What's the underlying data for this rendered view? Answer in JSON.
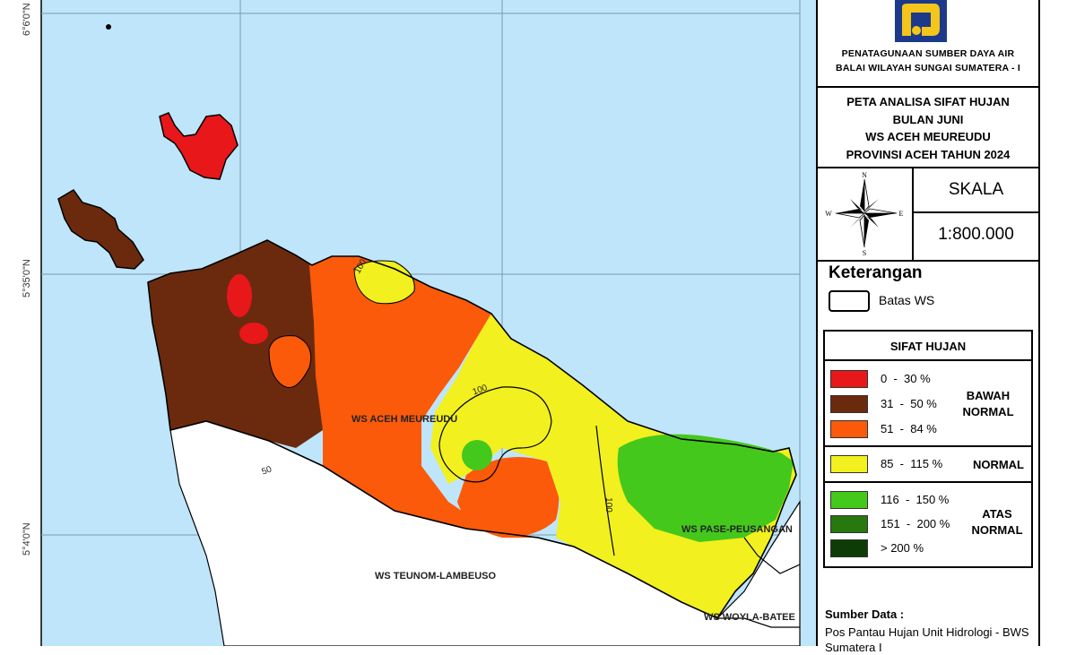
{
  "map": {
    "lat_labels": [
      "6°6'0\"N",
      "5°35'0\"N",
      "5°4'0\"N"
    ],
    "ws_labels": [
      "WS ACEH MEUREUDU",
      "WS PASE-PEUSANGAN",
      "WS TEUNOM-LAMBEUSO",
      "WS WOYLA-BATEE"
    ],
    "contour_labels": [
      "100",
      "100",
      "50",
      "100"
    ],
    "colors": {
      "sea": "#bfe5fb",
      "land_outside": "#ffffff",
      "grid": "#7a9aaa"
    }
  },
  "header": {
    "logo_icon": "pupr-logo-icon",
    "org_line1": "PENATAGUNAAN SUMBER DAYA AIR",
    "org_line2": "BALAI WILAYAH SUNGAI SUMATERA - I"
  },
  "title": {
    "line1": "PETA ANALISA SIFAT HUJAN",
    "line2": "BULAN JUNI",
    "line3": "WS ACEH MEUREUDU",
    "line4": "PROVINSI ACEH TAHUN 2024"
  },
  "compass": {
    "icon": "north-arrow-icon",
    "n": "N",
    "s": "S",
    "e": "E",
    "w": "W"
  },
  "scale": {
    "title": "SKALA",
    "value": "1:800.000"
  },
  "legend": {
    "title": "Keterangan",
    "batas_label": "Batas WS",
    "sifat_title": "SIFAT HUJAN",
    "groups": [
      {
        "label": "BAWAH NORMAL",
        "items": [
          {
            "range": "0  -  30 %",
            "color": "#e8171a"
          },
          {
            "range": "31  -  50 %",
            "color": "#6b2a0e"
          },
          {
            "range": "51  -  84 %",
            "color": "#fa5a0a"
          }
        ]
      },
      {
        "label": "NORMAL",
        "items": [
          {
            "range": "85  -  115 %",
            "color": "#f2f01e"
          }
        ]
      },
      {
        "label": "ATAS NORMAL",
        "items": [
          {
            "range": "116  -  150 %",
            "color": "#45c81c"
          },
          {
            "range": "151  -  200 %",
            "color": "#27780f"
          },
          {
            "range": "> 200 %",
            "color": "#0e3c06"
          }
        ]
      }
    ]
  },
  "source": {
    "title": "Sumber Data :",
    "text": "Pos Pantau Hujan Unit Hidrologi - BWS Sumatera I"
  }
}
